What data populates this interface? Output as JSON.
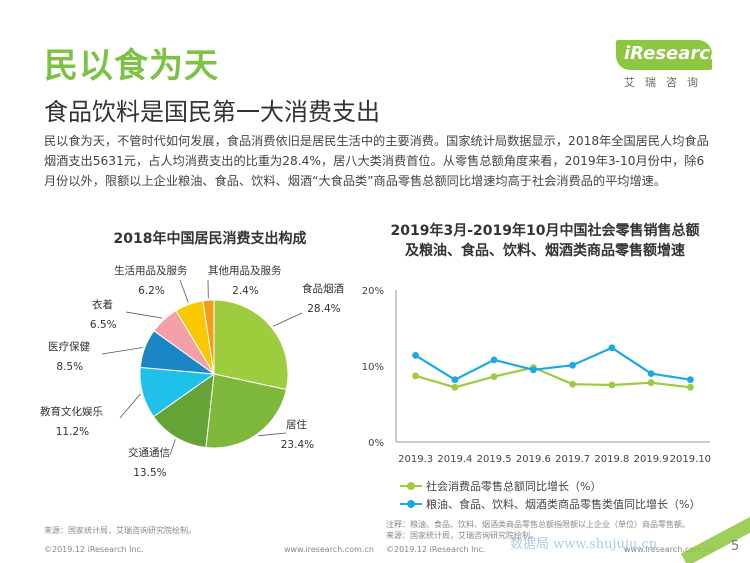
{
  "header": {
    "title": "民以食为天",
    "subtitle": "食品饮料是国民第一大消费支出",
    "intro": "民以食为天，不管时代如何发展，食品消费依旧是居民生活中的主要消费。国家统计局数据显示，2018年全国居民人均食品烟酒支出5631元，占人均消费支出的比重为28.4%，居八大类消费首位。从零售总额角度来看，2019年3-10月份中，除6月份以外，限额以上企业粮油、食品、饮料、烟酒“大食品类”商品零售总额同比增速均高于社会消费品的平均增速。"
  },
  "logo": {
    "name": "iResearch",
    "cn": "艾瑞咨询"
  },
  "colors": {
    "brand_green": "#7dc242",
    "line_green": "#9dcc3d",
    "line_blue": "#1ba9e8"
  },
  "chart_data": [
    {
      "type": "pie",
      "title": "2018年中国居民消费支出构成",
      "slices": [
        {
          "label": "食品烟酒",
          "value": 28.4,
          "value_label": "28.4%",
          "color": "#9dcc3d"
        },
        {
          "label": "居住",
          "value": 23.4,
          "value_label": "23.4%",
          "color": "#7db83a"
        },
        {
          "label": "交通通信",
          "value": 13.5,
          "value_label": "13.5%",
          "color": "#64a336"
        },
        {
          "label": "教育文化娱乐",
          "value": 11.2,
          "value_label": "11.2%",
          "color": "#1fc1ea"
        },
        {
          "label": "医疗保健",
          "value": 8.5,
          "value_label": "8.5%",
          "color": "#1a86c7"
        },
        {
          "label": "衣着",
          "value": 6.5,
          "value_label": "6.5%",
          "color": "#f4a0a8"
        },
        {
          "label": "生活用品及服务",
          "value": 6.2,
          "value_label": "6.2%",
          "color": "#f9c800"
        },
        {
          "label": "其他用品及服务",
          "value": 2.4,
          "value_label": "2.4%",
          "color": "#f59d1b"
        }
      ]
    },
    {
      "type": "line",
      "title_line1": "2019年3月-2019年10月中国社会零售销售总额",
      "title_line2": "及粮油、食品、饮料、烟酒类商品零售额增速",
      "categories": [
        "2019.3",
        "2019.4",
        "2019.5",
        "2019.6",
        "2019.7",
        "2019.8",
        "2019.9",
        "2019.10"
      ],
      "ylim": [
        0,
        20
      ],
      "yticks": [
        0,
        10,
        20
      ],
      "ytick_labels": [
        "0%",
        "10%",
        "20%"
      ],
      "series": [
        {
          "name": "社会消费品零售总额同比增长（%）",
          "values": [
            8.7,
            7.2,
            8.6,
            9.8,
            7.6,
            7.5,
            7.8,
            7.2
          ],
          "color": "#9dcc3d"
        },
        {
          "name": "粮油、食品、饮料、烟酒类商品零售类值同比增长（%）",
          "values": [
            11.4,
            8.2,
            10.8,
            9.5,
            10.1,
            12.4,
            9.0,
            8.2
          ],
          "color": "#1ba9e8"
        }
      ]
    }
  ],
  "footer": {
    "source_left": "来源：国家统计局，艾瑞咨询研究院绘制。",
    "copyright_left": "©2019.12 iResearch Inc.",
    "url_left": "www.iresearch.com.cn",
    "note_right": "注释：粮油、食品、饮料、烟酒类商品零售总额指限额以上企业（单位）商品零售额。",
    "source_right": "来源：国家统计局，艾瑞咨询研究院绘制。",
    "copyright_right": "©2019.12 iResearch Inc.",
    "url_right": "www.iresearch.com.cn",
    "watermark": "数据局 www.shujuju.cn",
    "page": "5"
  }
}
